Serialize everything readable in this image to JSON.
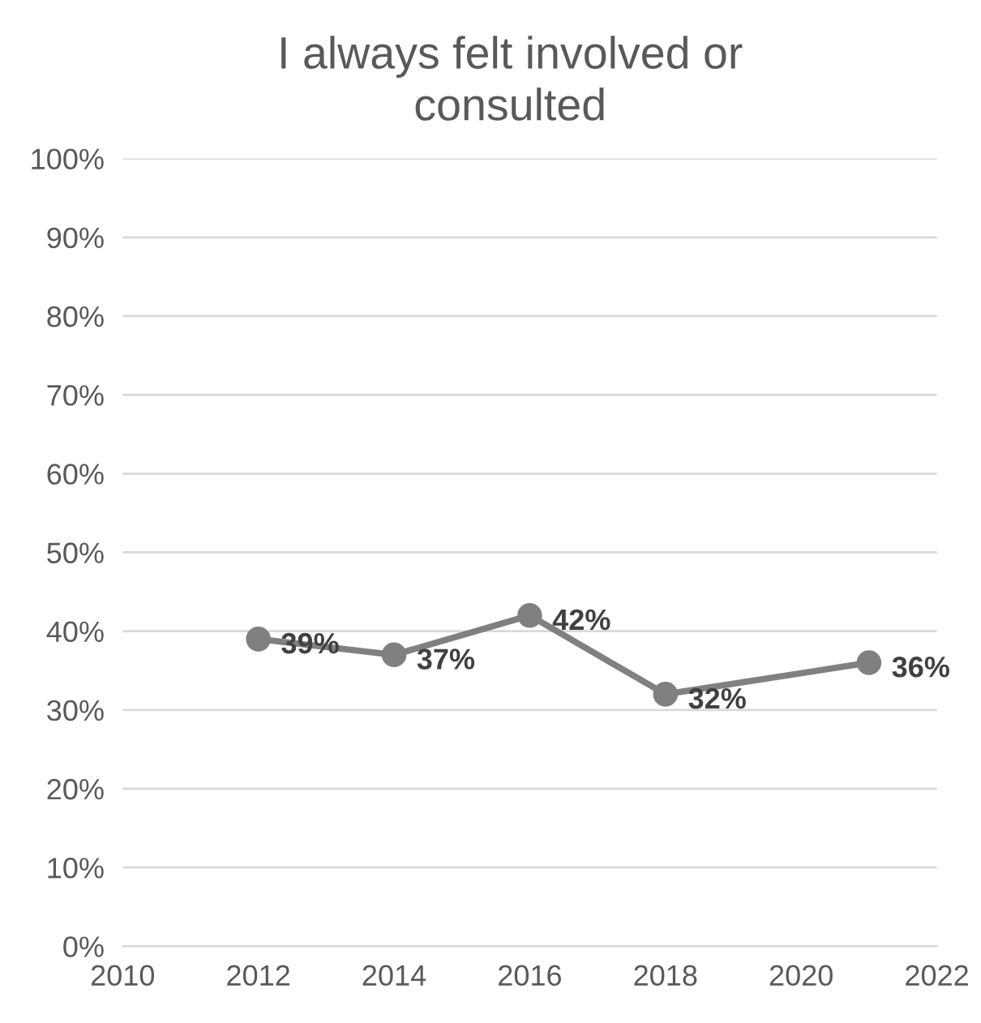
{
  "chart_data": {
    "type": "line",
    "title": "I always felt involved or\nconsulted",
    "x": [
      2012,
      2014,
      2016,
      2018,
      2021
    ],
    "series": [
      {
        "color": "#808080",
        "values": [
          39,
          37,
          42,
          32,
          36
        ],
        "value_labels": [
          "39%",
          "37%",
          "42%",
          "32%",
          "36%"
        ]
      }
    ],
    "xlim": [
      2010,
      2022
    ],
    "xticks": [
      2010,
      2012,
      2014,
      2016,
      2018,
      2020,
      2022
    ],
    "ylim": [
      0,
      100
    ],
    "yticks": [
      {
        "value": 0,
        "label": "0%"
      },
      {
        "value": 10,
        "label": "10%"
      },
      {
        "value": 20,
        "label": "20%"
      },
      {
        "value": 30,
        "label": "30%"
      },
      {
        "value": 40,
        "label": "40%"
      },
      {
        "value": 50,
        "label": "50%"
      },
      {
        "value": 60,
        "label": "60%"
      },
      {
        "value": 70,
        "label": "70%"
      },
      {
        "value": 80,
        "label": "80%"
      },
      {
        "value": 90,
        "label": "90%"
      },
      {
        "value": 100,
        "label": "100%"
      }
    ],
    "grid": "y",
    "marker": "circle",
    "line_style": "solid",
    "legend": false
  }
}
